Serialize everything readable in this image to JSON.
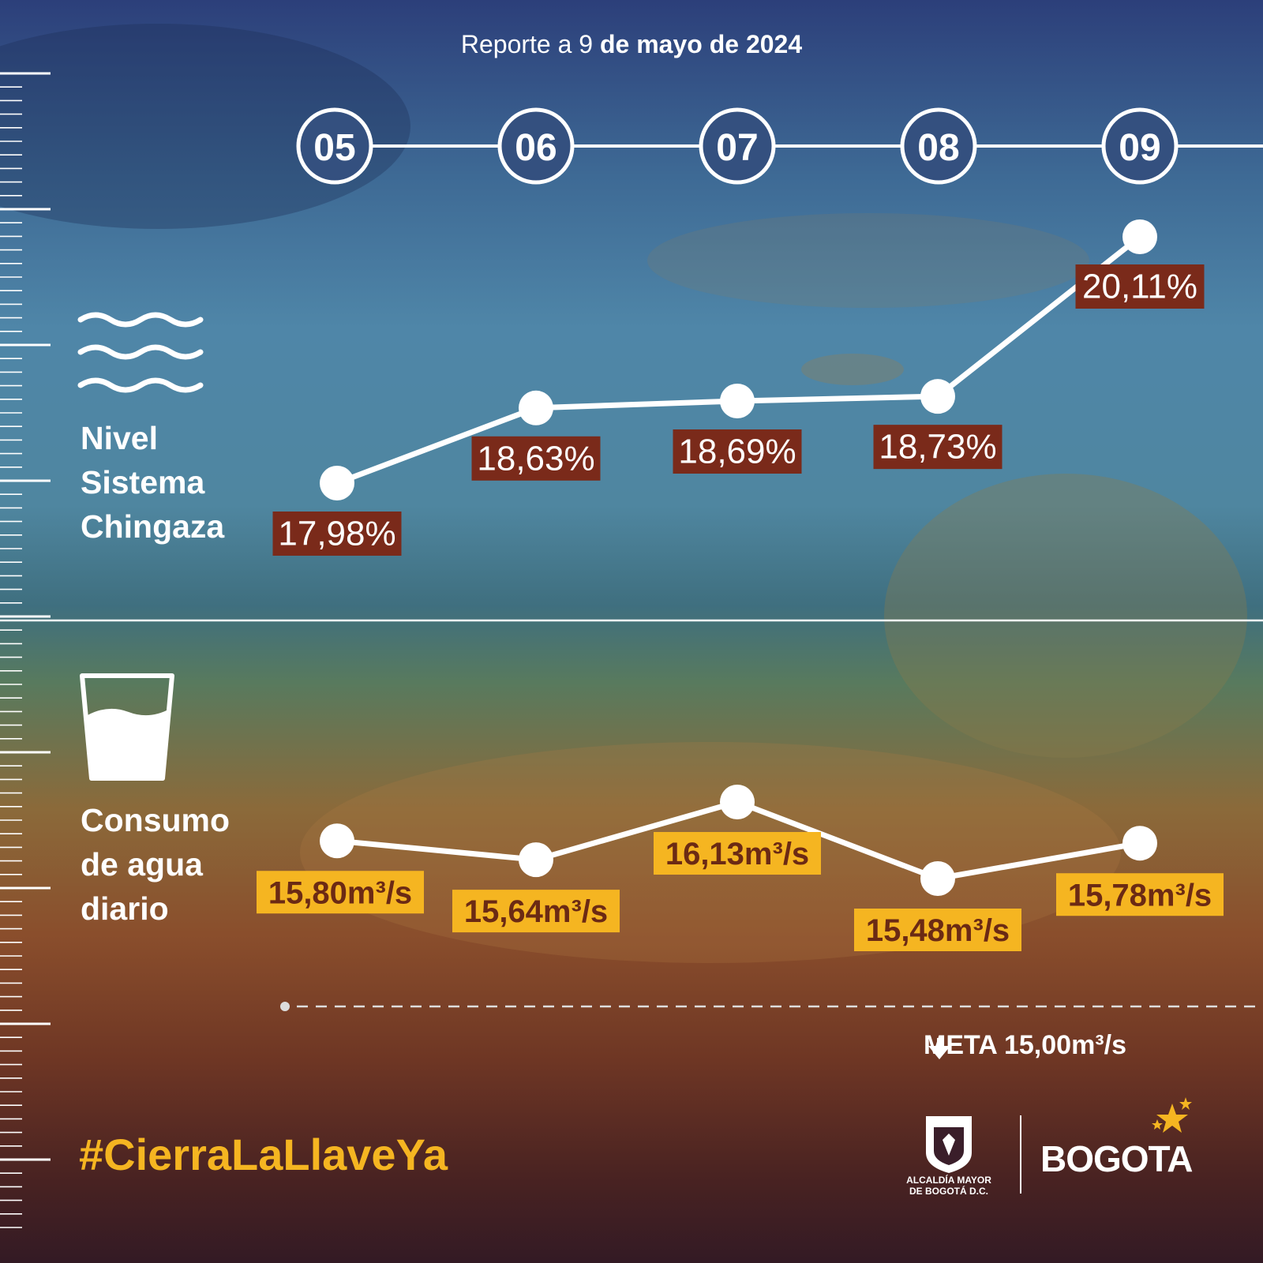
{
  "report": {
    "prefix": "Reporte a",
    "day": "9",
    "rest": "de mayo de 2024"
  },
  "days": [
    "05",
    "06",
    "07",
    "08",
    "09"
  ],
  "sections": {
    "level": {
      "line1": "Nivel",
      "line2": "Sistema",
      "line3": "Chingaza",
      "icon": "waves-icon"
    },
    "consumption": {
      "line1": "Consumo",
      "line2": "de agua",
      "line3": "diario",
      "icon": "water-glass-icon"
    }
  },
  "meta": {
    "label": "META 15,00m³/s",
    "value": 15.0,
    "icon": "arrow-down-icon"
  },
  "hashtag": "#CierraLaLlaveYa",
  "logos": {
    "alcaldia_line1": "ALCALDÍA MAYOR",
    "alcaldia_line2": "DE BOGOTÁ D.C.",
    "bogota": "BOGOTA"
  },
  "colors": {
    "level_label_bg": "#7a2a1a",
    "consumption_label_bg": "#f5b521",
    "consumption_label_text": "#6b2a14",
    "accent": "#f5b521"
  },
  "chart_data": [
    {
      "type": "line",
      "x": [
        "05",
        "06",
        "07",
        "08",
        "09"
      ],
      "series": [
        {
          "values": [
            17.98,
            18.63,
            18.69,
            18.73,
            20.11
          ],
          "labels": [
            "17,98%",
            "18,63%",
            "18,69%",
            "18,73%",
            "20,11%"
          ]
        }
      ]
    },
    {
      "type": "line",
      "x": [
        "05",
        "06",
        "07",
        "08",
        "09"
      ],
      "series": [
        {
          "values": [
            15.8,
            15.64,
            16.13,
            15.48,
            15.78
          ],
          "labels": [
            "15,80m³/s",
            "15,64m³/s",
            "16,13m³/s",
            "15,48m³/s",
            "15,78m³/s"
          ]
        }
      ],
      "reference": {
        "value": 15.0,
        "label": "META 15,00m³/s"
      }
    }
  ]
}
